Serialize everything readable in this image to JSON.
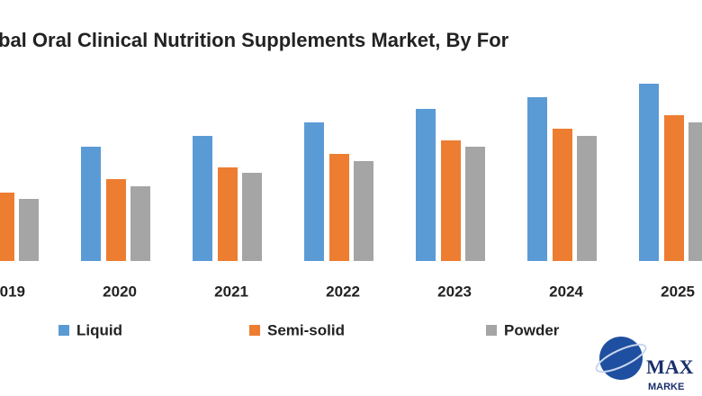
{
  "chart_data": {
    "type": "bar",
    "title": "bal Oral Clinical Nutrition Supplements Market, By For",
    "categories": [
      "019",
      "2020",
      "2021",
      "2022",
      "2023",
      "2024",
      "2025"
    ],
    "series": [
      {
        "name": "Liquid",
        "color": "#5b9bd5",
        "values": [
          null,
          127,
          139,
          154,
          169,
          182,
          197
        ]
      },
      {
        "name": "Semi-solid",
        "color": "#ed7d31",
        "values": [
          76,
          91,
          104,
          119,
          134,
          147,
          162
        ]
      },
      {
        "name": "Powder",
        "color": "#a5a5a5",
        "values": [
          69,
          83,
          98,
          111,
          127,
          139,
          154
        ]
      }
    ]
  },
  "logo": {
    "line1": "MAX",
    "line2": "MARKE"
  }
}
